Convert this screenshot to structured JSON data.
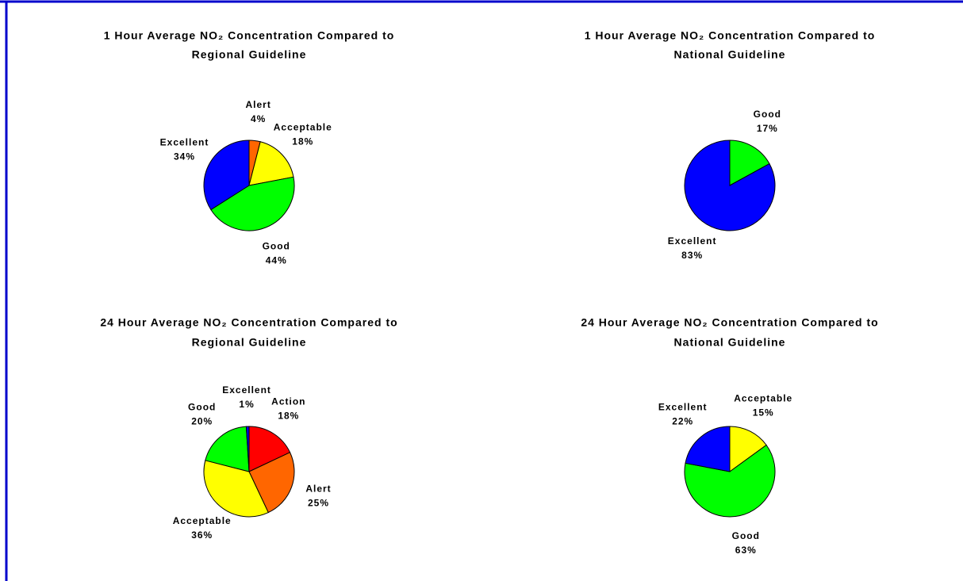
{
  "chart_data": [
    {
      "type": "pie",
      "title": [
        "1 Hour Average NO₂ Concentration Compared to",
        "Regional Guideline"
      ],
      "categories": [
        "Alert",
        "Acceptable",
        "Good",
        "Excellent"
      ],
      "values": [
        4,
        18,
        44,
        34
      ],
      "value_labels": [
        "4%",
        "18%",
        "44%",
        "34%"
      ],
      "colors": [
        "#ff6600",
        "#ffff00",
        "#00ff00",
        "#0000ff"
      ]
    },
    {
      "type": "pie",
      "title": [
        "1 Hour Average NO₂ Concentration Compared to",
        "National Guideline"
      ],
      "categories": [
        "Good",
        "Excellent"
      ],
      "values": [
        17,
        83
      ],
      "value_labels": [
        "17%",
        "83%"
      ],
      "colors": [
        "#00ff00",
        "#0000ff"
      ]
    },
    {
      "type": "pie",
      "title": [
        "24 Hour Average NO₂ Concentration Compared to",
        "Regional Guideline"
      ],
      "categories": [
        "Action",
        "Alert",
        "Acceptable",
        "Good",
        "Excellent"
      ],
      "values": [
        18,
        25,
        36,
        20,
        1
      ],
      "value_labels": [
        "18%",
        "25%",
        "36%",
        "20%",
        "1%"
      ],
      "colors": [
        "#ff0000",
        "#ff6600",
        "#ffff00",
        "#00ff00",
        "#0000ff"
      ]
    },
    {
      "type": "pie",
      "title": [
        "24 Hour Average NO₂ Concentration Compared to",
        "National Guideline"
      ],
      "categories": [
        "Acceptable",
        "Good",
        "Excellent"
      ],
      "values": [
        15,
        63,
        22
      ],
      "value_labels": [
        "15%",
        "63%",
        "22%"
      ],
      "colors": [
        "#ffff00",
        "#00ff00",
        "#0000ff"
      ]
    }
  ]
}
